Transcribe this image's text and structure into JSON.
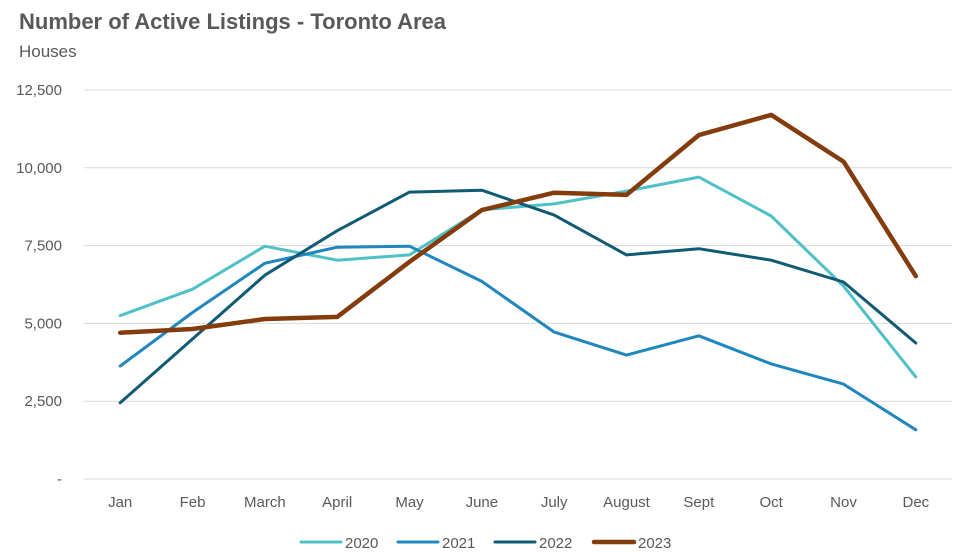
{
  "chart_data": {
    "type": "line",
    "title": "Number of Active Listings - Toronto Area",
    "subtitle": "Houses",
    "xlabel": "",
    "ylabel": "",
    "categories": [
      "Jan",
      "Feb",
      "March",
      "April",
      "May",
      "June",
      "July",
      "August",
      "Sept",
      "Oct",
      "Nov",
      "Dec"
    ],
    "ylim": [
      0,
      12500
    ],
    "yticks": [
      {
        "value": 0,
        "label": "-"
      },
      {
        "value": 2500,
        "label": "2,500"
      },
      {
        "value": 5000,
        "label": "5,000"
      },
      {
        "value": 7500,
        "label": "7,500"
      },
      {
        "value": 10000,
        "label": "10,000"
      },
      {
        "value": 12500,
        "label": "12,500"
      }
    ],
    "grid": true,
    "legend": "bottom",
    "series": [
      {
        "name": "2020",
        "color": "#4fc1c6",
        "values": [
          5250,
          6100,
          7480,
          7030,
          7200,
          8650,
          8840,
          9250,
          9700,
          8450,
          6200,
          3280
        ]
      },
      {
        "name": "2021",
        "color": "#1f87bd",
        "values": [
          3630,
          5350,
          6930,
          7450,
          7480,
          6350,
          4720,
          3980,
          4600,
          3700,
          3050,
          1580
        ]
      },
      {
        "name": "2022",
        "color": "#105a73",
        "values": [
          2450,
          4500,
          6550,
          7980,
          9220,
          9280,
          8480,
          7200,
          7400,
          7030,
          6330,
          4370
        ]
      },
      {
        "name": "2023",
        "color": "#843c0c",
        "values": [
          4700,
          4820,
          5140,
          5210,
          6980,
          8640,
          9200,
          9130,
          11050,
          11700,
          10200,
          6520
        ]
      }
    ]
  }
}
